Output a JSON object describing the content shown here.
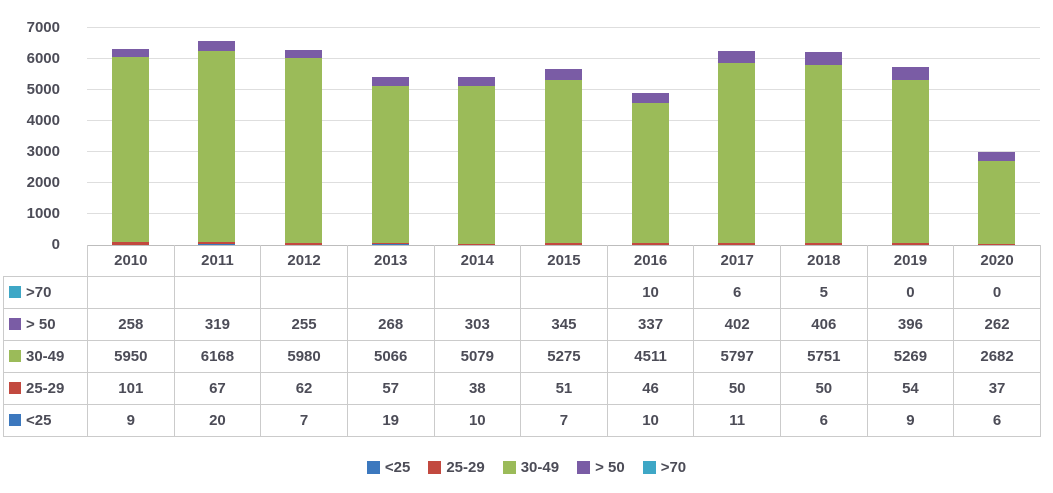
{
  "chart_data": {
    "type": "bar",
    "stacked": true,
    "title": "",
    "xlabel": "",
    "ylabel": "",
    "ylim": [
      0,
      7000
    ],
    "y_ticks": [
      0,
      1000,
      2000,
      3000,
      4000,
      5000,
      6000,
      7000
    ],
    "grid": "horizontal",
    "legend_position": "bottom",
    "data_table_shown": true,
    "categories": [
      "2010",
      "2011",
      "2012",
      "2013",
      "2014",
      "2015",
      "2016",
      "2017",
      "2018",
      "2019",
      "2020"
    ],
    "series": [
      {
        "name": "<25",
        "color": "#3c78be",
        "values": [
          9,
          20,
          7,
          19,
          10,
          7,
          10,
          11,
          6,
          9,
          6
        ]
      },
      {
        "name": "25-29",
        "color": "#c2493f",
        "values": [
          101,
          67,
          62,
          57,
          38,
          51,
          46,
          50,
          50,
          54,
          37
        ]
      },
      {
        "name": "30-49",
        "color": "#9bbb59",
        "values": [
          5950,
          6168,
          5980,
          5066,
          5079,
          5275,
          4511,
          5797,
          5751,
          5269,
          2682
        ]
      },
      {
        "name": "> 50",
        "color": "#7a5ca5",
        "values": [
          258,
          319,
          255,
          268,
          303,
          345,
          337,
          402,
          406,
          396,
          262
        ]
      },
      {
        "name": ">70",
        "color": "#3ea7c6",
        "values": [
          null,
          null,
          null,
          null,
          null,
          null,
          10,
          6,
          5,
          0,
          0
        ]
      }
    ],
    "colors": {
      "gridline": "#dedede",
      "axis_line": "#bdbdbd",
      "table_border": "#cbcbcb",
      "text": "#4c4c57"
    }
  }
}
